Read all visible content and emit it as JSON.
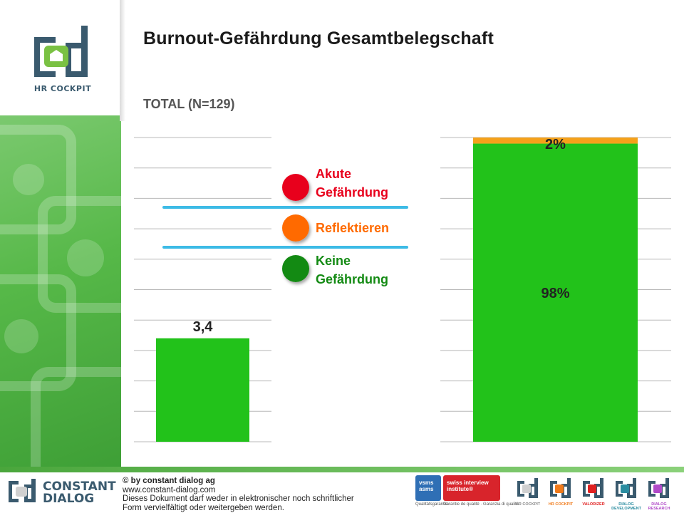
{
  "title": "Burnout-Gefährdung Gesamtbelegschaft",
  "subtitle": "TOTAL (N=129)",
  "brand": {
    "product_name": "HR COCKPIT",
    "footer_brand_line1": "CONSTANT",
    "footer_brand_line2": "DIALOG",
    "copyright_lines": [
      "© by constant dialog ag",
      "www.constant-dialog.com",
      "Dieses Dokument darf weder in elektronischer noch schriftlicher",
      "Form vervielfältigt oder weitergeben werden."
    ],
    "cert_vsms": "vsms asms",
    "cert_swiss": "swiss interview institute®",
    "cert_caption_1": "Qualitätsgarantie",
    "cert_caption_2": "Garantie de qualité · Garanzia di qualità",
    "mini_logos": [
      {
        "label": "HR COCKPIT",
        "color": "#d0d0d0"
      },
      {
        "label": "HR COCKPIT",
        "color": "#f07a1a"
      },
      {
        "label": "VALORIZER",
        "color": "#e02020"
      },
      {
        "label": "DIALOG DEVELOPMENT",
        "color": "#2a8ca0"
      },
      {
        "label": "DIALOG RESEARCH",
        "color": "#b04ac8"
      }
    ]
  },
  "legend": [
    {
      "label_line1": "Akute",
      "label_line2": "Gefährdung",
      "color": "#e8001c"
    },
    {
      "label_line1": "Reflektieren",
      "label_line2": "",
      "color": "#ff6a00"
    },
    {
      "label_line1": "Keine",
      "label_line2": "Gefährdung",
      "color": "#138a13"
    }
  ],
  "chart_data": [
    {
      "type": "bar",
      "categories": [
        ""
      ],
      "values": [
        3.4
      ],
      "data_labels": [
        "3,4"
      ],
      "ylim": [
        0,
        10
      ],
      "grid": true,
      "bar_color": "#22c21a"
    },
    {
      "type": "bar",
      "stacked": true,
      "categories": [
        ""
      ],
      "series": [
        {
          "values": [
            98
          ],
          "color": "#22c21a",
          "data_label": "98%"
        },
        {
          "values": [
            2
          ],
          "color": "#f5a11a",
          "data_label": "2%"
        }
      ],
      "ylim": [
        0,
        100
      ],
      "grid": true
    }
  ]
}
